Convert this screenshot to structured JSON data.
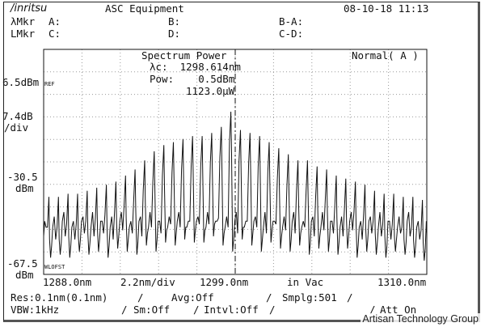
{
  "header": {
    "brand": "/inritsu",
    "title": "ASC Equipment",
    "datetime": "08-10-18 11:13"
  },
  "markers": {
    "row1_prefix": "λMkr",
    "row2_prefix": "LMkr",
    "a": "A:",
    "b": "B:",
    "ba": "B-A:",
    "c": "C:",
    "d": "D:",
    "cd": "C-D:"
  },
  "plot_info": {
    "mode_title": "Spectrum Power",
    "lambda_c": "λc:  1298.614nm",
    "pow": "Pow:    0.5dBm",
    "uw": "1123.0μW",
    "normal": "Normal( A )"
  },
  "yaxis": {
    "ref_value": "6.5dBm",
    "ref_tag": "REF",
    "scale_value": "7.4dB",
    "scale_unit": "/div",
    "mid_value": "-30.5",
    "mid_unit": "dBm",
    "bottom_value": "-67.5",
    "bottom_unit": "dBm",
    "offset_tag": "WLOFST"
  },
  "xaxis": {
    "start": "1288.0nm",
    "span": "2.2nm/div",
    "center": "1299.0nm",
    "medium": "in Vac",
    "stop": "1310.0nm"
  },
  "settings": {
    "res": "Res:0.1nm(0.1nm)",
    "avg": "Avg:Off",
    "smplg": "Smplg:501",
    "vbw": "VBW:1kHz",
    "sm": "Sm:Off",
    "intvl": "Intvl:Off",
    "att": "Att On"
  },
  "watermark": "Artisan Technology Group",
  "chart_data": {
    "type": "line",
    "x_unit": "nm",
    "y_unit": "dBm",
    "xlim": [
      1288.0,
      1310.0
    ],
    "ylim": [
      -67.5,
      6.5
    ],
    "center_wavelength": 1299.0,
    "peak_wavelengths": [
      1288.3,
      1288.85,
      1289.4,
      1289.95,
      1290.5,
      1291.05,
      1291.6,
      1292.15,
      1292.7,
      1293.25,
      1293.8,
      1294.35,
      1294.9,
      1295.45,
      1296.0,
      1296.55,
      1297.1,
      1297.65,
      1298.2,
      1298.75,
      1299.3,
      1299.85,
      1300.4,
      1300.95,
      1301.5,
      1302.05,
      1302.6,
      1303.15,
      1303.7,
      1304.25,
      1304.8,
      1305.35,
      1305.9,
      1306.45,
      1307.0,
      1307.55,
      1308.1,
      1308.65,
      1309.2,
      1309.75
    ],
    "peak_values": [
      -42,
      -42,
      -41,
      -41,
      -40,
      -39,
      -38,
      -37,
      -35,
      -33,
      -30,
      -27,
      -25,
      -24,
      -23,
      -22,
      -22,
      -21,
      -19,
      -14,
      -20,
      -21,
      -22,
      -24,
      -26,
      -28,
      -30,
      -30,
      -32,
      -33,
      -35,
      -36,
      -37,
      -38,
      -40,
      -41,
      -41,
      -42,
      -42,
      -43
    ],
    "trough_values": [
      -62,
      -61,
      -62,
      -60,
      -61,
      -60,
      -62,
      -59,
      -60,
      -61,
      -58,
      -60,
      -57,
      -58,
      -56,
      -57,
      -57,
      -55,
      -58,
      -60,
      -56,
      -58,
      -60,
      -57,
      -59,
      -60,
      -58,
      -61,
      -59,
      -60,
      -61,
      -59,
      -62,
      -60,
      -61,
      -62,
      -60,
      -61,
      -62,
      -63
    ]
  }
}
